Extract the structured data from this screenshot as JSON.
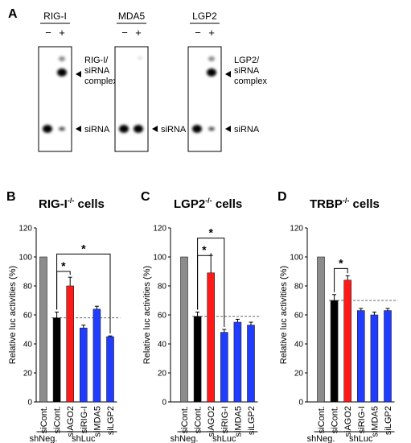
{
  "panel_a": {
    "letter": "A",
    "gels": [
      {
        "title": "RIG-I",
        "minus": "−",
        "plus": "+",
        "upper_band": true,
        "labels": [
          "RIG-I/",
          "siRNA",
          "complex"
        ],
        "lower_label": "siRNA"
      },
      {
        "title": "MDA5",
        "minus": "−",
        "plus": "+",
        "upper_band": false,
        "labels": [],
        "lower_label": "siRNA"
      },
      {
        "title": "LGP2",
        "minus": "−",
        "plus": "+",
        "upper_band": true,
        "labels": [
          "LGP2/",
          "siRNA",
          "complex"
        ],
        "lower_label": "siRNA"
      }
    ]
  },
  "chart_data": [
    {
      "type": "bar",
      "panel": "B",
      "title": "RIG-I",
      "title_sup": "-/-",
      "title_suffix": " cells",
      "ylabel": "Relative luc activities (%)",
      "ylim": [
        0,
        120
      ],
      "yticks": [
        "0",
        "20",
        "40",
        "60",
        "80",
        "100",
        "120"
      ],
      "categories": [
        "siCont.",
        "siCont.",
        "siAGO2",
        "siRIG-I",
        "siMDA5",
        "siLGP2"
      ],
      "values": [
        100,
        58,
        80,
        51,
        64,
        45
      ],
      "errors": [
        0,
        4,
        6,
        2,
        2,
        0.5
      ],
      "colors": [
        "#8c8c8c",
        "#000000",
        "#ff1a1a",
        "#1f3cff",
        "#1f3cff",
        "#1f3cff"
      ],
      "dashed_line": 58,
      "groups": [
        {
          "label": "shNeg.",
          "from": 0,
          "to": 0
        },
        {
          "label": "shLuc",
          "from": 1,
          "to": 5
        }
      ],
      "significance": [
        {
          "from": 1,
          "to": 2,
          "label": "*",
          "at": 90
        },
        {
          "from": 1,
          "to": 5,
          "label": "*",
          "at": 102
        }
      ]
    },
    {
      "type": "bar",
      "panel": "C",
      "title": "LGP2",
      "title_sup": "-/-",
      "title_suffix": " cells",
      "ylabel": "Relative luc activities (%)",
      "ylim": [
        0,
        120
      ],
      "yticks": [
        "0",
        "20",
        "40",
        "60",
        "80",
        "100",
        "120"
      ],
      "categories": [
        "siCont.",
        "siCont.",
        "siAGO2",
        "siRIG-I",
        "siMDA5",
        "siLGP2"
      ],
      "values": [
        100,
        59,
        89,
        48,
        55,
        53
      ],
      "errors": [
        0,
        3,
        12,
        2,
        2,
        2
      ],
      "colors": [
        "#8c8c8c",
        "#000000",
        "#ff1a1a",
        "#1f3cff",
        "#1f3cff",
        "#1f3cff"
      ],
      "dashed_line": 59,
      "groups": [
        {
          "label": "shNeg.",
          "from": 0,
          "to": 0
        },
        {
          "label": "shLuc",
          "from": 1,
          "to": 5
        }
      ],
      "significance": [
        {
          "from": 1,
          "to": 2,
          "label": "*",
          "at": 101
        },
        {
          "from": 1,
          "to": 3,
          "label": "*",
          "at": 113
        }
      ]
    },
    {
      "type": "bar",
      "panel": "D",
      "title": "TRBP",
      "title_sup": "-/-",
      "title_suffix": " cells",
      "ylabel": "Relative luc activities (%)",
      "ylim": [
        0,
        120
      ],
      "yticks": [
        "0",
        "20",
        "40",
        "60",
        "80",
        "100",
        "120"
      ],
      "categories": [
        "siCont.",
        "siCont.",
        "siAGO2",
        "siRIG-I",
        "siMDA5",
        "siLGP2"
      ],
      "values": [
        100,
        70,
        84,
        63,
        60,
        63
      ],
      "errors": [
        0,
        4,
        3,
        1.5,
        2,
        1.5
      ],
      "colors": [
        "#8c8c8c",
        "#000000",
        "#ff1a1a",
        "#1f3cff",
        "#1f3cff",
        "#1f3cff"
      ],
      "dashed_line": 70,
      "groups": [
        {
          "label": "shNeg.",
          "from": 0,
          "to": 0
        },
        {
          "label": "shLuc",
          "from": 1,
          "to": 5
        }
      ],
      "significance": [
        {
          "from": 1,
          "to": 2,
          "label": "*",
          "at": 92
        }
      ]
    }
  ]
}
